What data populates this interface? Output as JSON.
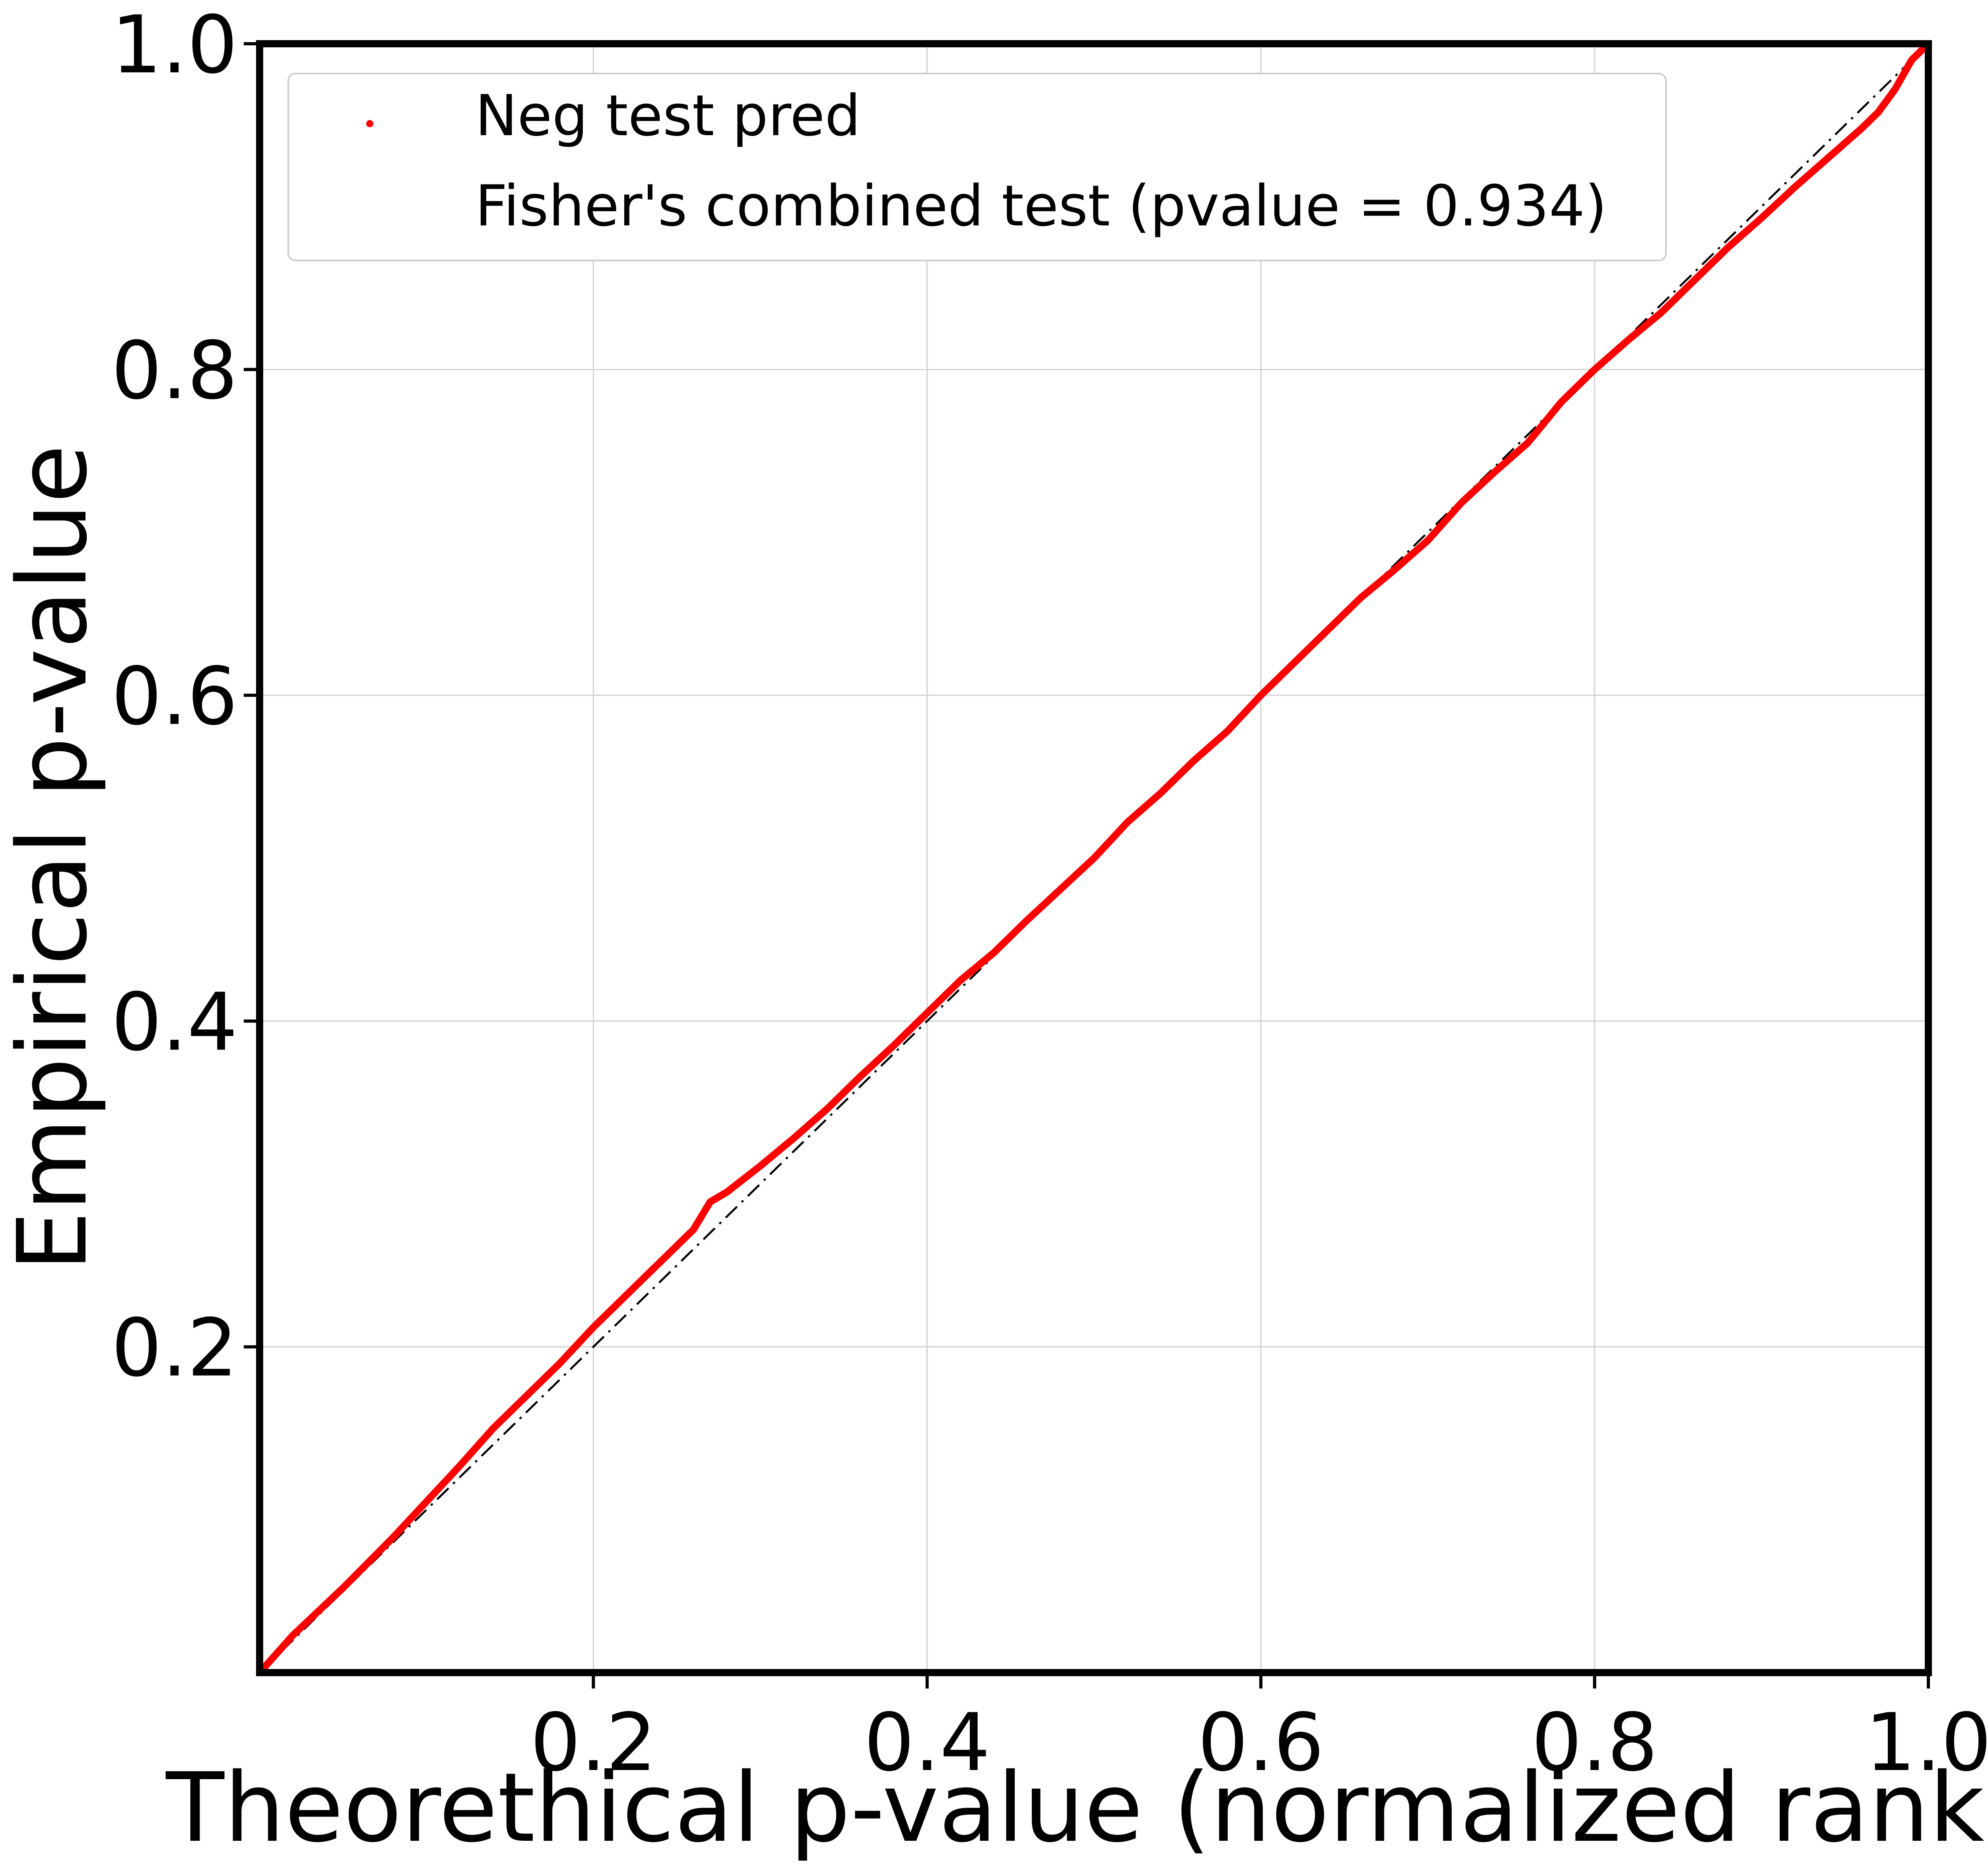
{
  "chart_data": {
    "type": "scatter",
    "xlabel": "Theorethical p-value (normalized rank)",
    "ylabel": "Empirical p-value",
    "xlim": [
      0.0,
      1.0
    ],
    "ylim": [
      0.0,
      1.0
    ],
    "xticks": [
      "0.2",
      "0.4",
      "0.6",
      "0.8",
      "1.0"
    ],
    "yticks": [
      "0.2",
      "0.4",
      "0.6",
      "0.8",
      "1.0"
    ],
    "grid": true,
    "legend_position": "top-left",
    "series": [
      {
        "name": "Neg test pred",
        "color": "#ff0000",
        "marker": "dot",
        "points": [
          [
            0.0,
            0.0
          ],
          [
            0.02,
            0.023
          ],
          [
            0.05,
            0.052
          ],
          [
            0.08,
            0.083
          ],
          [
            0.1,
            0.105
          ],
          [
            0.12,
            0.127
          ],
          [
            0.14,
            0.15
          ],
          [
            0.16,
            0.17
          ],
          [
            0.18,
            0.19
          ],
          [
            0.2,
            0.212
          ],
          [
            0.22,
            0.232
          ],
          [
            0.24,
            0.252
          ],
          [
            0.26,
            0.272
          ],
          [
            0.27,
            0.289
          ],
          [
            0.28,
            0.295
          ],
          [
            0.3,
            0.311
          ],
          [
            0.32,
            0.328
          ],
          [
            0.34,
            0.346
          ],
          [
            0.36,
            0.366
          ],
          [
            0.38,
            0.385
          ],
          [
            0.4,
            0.405
          ],
          [
            0.42,
            0.425
          ],
          [
            0.44,
            0.442
          ],
          [
            0.46,
            0.462
          ],
          [
            0.48,
            0.481
          ],
          [
            0.5,
            0.5
          ],
          [
            0.52,
            0.522
          ],
          [
            0.54,
            0.54
          ],
          [
            0.56,
            0.56
          ],
          [
            0.58,
            0.578
          ],
          [
            0.6,
            0.6
          ],
          [
            0.62,
            0.62
          ],
          [
            0.64,
            0.64
          ],
          [
            0.66,
            0.66
          ],
          [
            0.68,
            0.677
          ],
          [
            0.7,
            0.695
          ],
          [
            0.72,
            0.718
          ],
          [
            0.74,
            0.737
          ],
          [
            0.76,
            0.755
          ],
          [
            0.78,
            0.78
          ],
          [
            0.8,
            0.8
          ],
          [
            0.82,
            0.818
          ],
          [
            0.84,
            0.835
          ],
          [
            0.86,
            0.855
          ],
          [
            0.88,
            0.875
          ],
          [
            0.9,
            0.893
          ],
          [
            0.92,
            0.912
          ],
          [
            0.94,
            0.93
          ],
          [
            0.96,
            0.948
          ],
          [
            0.97,
            0.958
          ],
          [
            0.98,
            0.972
          ],
          [
            0.99,
            0.99
          ],
          [
            1.0,
            1.0
          ]
        ]
      },
      {
        "name": "Fisher's combined test (pvalue = 0.934)",
        "color": "#000000",
        "style": "dashdot",
        "points": [
          [
            0.0,
            0.0
          ],
          [
            1.0,
            1.0
          ]
        ]
      }
    ]
  }
}
